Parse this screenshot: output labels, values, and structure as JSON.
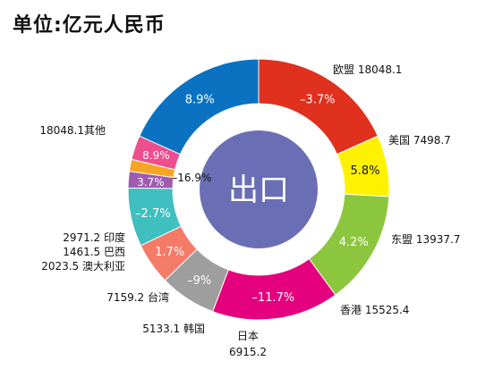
{
  "unit_title": "单位:亿元人民币",
  "chart_data": {
    "type": "pie",
    "variant": "donut",
    "title": "单位:亿元人民币",
    "center_label": "出口",
    "slices": [
      {
        "name": "欧盟",
        "value": 18048.1,
        "value_label": "18048.1",
        "label": "欧盟 18048.1",
        "change": "–3.7%",
        "color": "#e0301e"
      },
      {
        "name": "美国",
        "value": 7498.7,
        "value_label": "7498.7",
        "label": "美国 7498.7",
        "change": "5.8%",
        "color": "#fff200"
      },
      {
        "name": "东盟",
        "value": 13937.7,
        "value_label": "13937.7",
        "label": "东盟 13937.7",
        "change": "4.2%",
        "color": "#8cc63f"
      },
      {
        "name": "香港",
        "value": 15525.4,
        "value_label": "15525.4",
        "label": "香港 15525.4",
        "change": "–11.7%",
        "color": "#e5007e"
      },
      {
        "name": "日本",
        "value": 6915.2,
        "value_label": "6915.2",
        "label": "日本 6915.2",
        "change": "–9%",
        "color": "#9e9e9e"
      },
      {
        "name": "韩国",
        "value": 5133.1,
        "value_label": "5133.1",
        "label": "5133.1 韩国",
        "change": "1.7%",
        "color": "#f47b67"
      },
      {
        "name": "台湾",
        "value": 7159.2,
        "value_label": "7159.2",
        "label": "7159.2 台湾",
        "change": "–2.7%",
        "color": "#3fbfbf"
      },
      {
        "name": "澳大利亚",
        "value": 2023.5,
        "value_label": "2023.5",
        "label": "2023.5 澳大利亚",
        "change": "3.7%",
        "color": "#a05bb0"
      },
      {
        "name": "巴西",
        "value": 1461.5,
        "value_label": "1461.5",
        "label": "1461.5 巴西",
        "change": "–16.9%",
        "color": "#f6a623"
      },
      {
        "name": "印度",
        "value": 2971.2,
        "value_label": "2971.2",
        "label": "2971.2 印度",
        "change": "8.9%",
        "color": "#ee4d8e"
      },
      {
        "name": "其他",
        "value": 18048.1,
        "value_label": "18048.1",
        "label": "18048.1其他",
        "change": "8.9%",
        "color": "#0b72c2"
      }
    ],
    "colors": {
      "center_fill": "#6a6fb5",
      "center_text": "#ffffff",
      "label_text": "#111111",
      "change_text": "#ffffff",
      "change_text_dark": "#111111",
      "ring_inner_bg": "#ffffff"
    }
  }
}
